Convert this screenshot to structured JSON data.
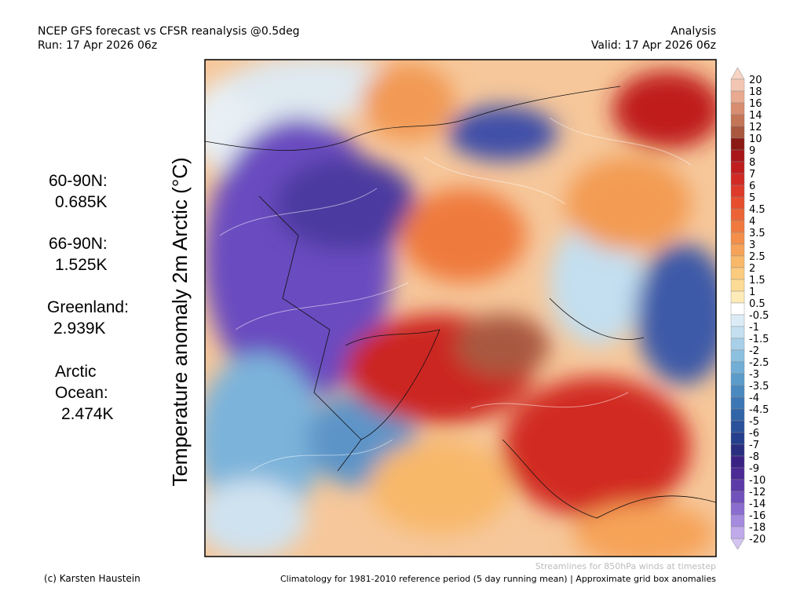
{
  "header": {
    "left": [
      "NCEP GFS forecast vs CFSR reanalysis @0.5deg",
      "Run: 17 Apr 2026 06z"
    ],
    "right": [
      "Analysis",
      "Valid: 17 Apr 2026 06z"
    ]
  },
  "axis_label": "Temperature anomaly 2m Arctic (°C)",
  "stats": [
    {
      "label": [
        "60-90N:"
      ],
      "value": "0.685K"
    },
    {
      "label": [
        "66-90N:"
      ],
      "value": "1.525K"
    },
    {
      "label": [
        "Greenland:"
      ],
      "value": "2.939K"
    },
    {
      "label": [
        "Arctic",
        "Ocean:"
      ],
      "value": "2.474K"
    }
  ],
  "colorbar": {
    "labels": [
      "20",
      "18",
      "16",
      "14",
      "12",
      "10",
      "9",
      "8",
      "7",
      "6",
      "5",
      "4.5",
      "4",
      "3.5",
      "3",
      "2.5",
      "2",
      "1.5",
      "1",
      "0.5",
      "-0.5",
      "-1",
      "-1.5",
      "-2",
      "-2.5",
      "-3",
      "-3.5",
      "-4",
      "-4.5",
      "-5",
      "-6",
      "-7",
      "-8",
      "-9",
      "-10",
      "-12",
      "-14",
      "-16",
      "-18",
      "-20"
    ],
    "colors": [
      "#f3c6b3",
      "#e8aa90",
      "#d88d70",
      "#c47556",
      "#a9583f",
      "#8b1a14",
      "#a8161a",
      "#c01d1e",
      "#d12a24",
      "#de3a2a",
      "#e64e2e",
      "#ec6435",
      "#f07a3e",
      "#f38f4a",
      "#f6a359",
      "#f8b86a",
      "#fbcb7e",
      "#fcdc95",
      "#fdebb8",
      "#ffffff",
      "#dcecf6",
      "#c3dff0",
      "#a8d0e8",
      "#8cc0df",
      "#72aed5",
      "#5c9ccb",
      "#4a89c0",
      "#3d76b4",
      "#3264a8",
      "#2a519b",
      "#253f8e",
      "#2a2e80",
      "#3a2285",
      "#4b2a95",
      "#5c3aa8",
      "#7152bd",
      "#8a6dcf",
      "#a58ade",
      "#c0aaea"
    ]
  },
  "footer": {
    "credit": "(c) Karsten Haustein",
    "streamlines": "Streamlines for 850hPa winds at timestep",
    "climatology": "Climatology for 1981-2010 reference period (5 day running mean) | Approximate grid box anomalies"
  }
}
